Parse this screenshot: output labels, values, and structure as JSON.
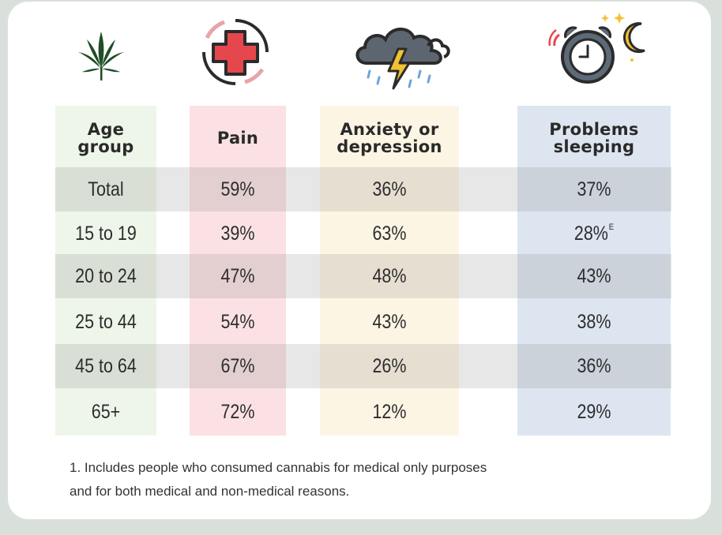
{
  "colors": {
    "pain": "#fbe1e3",
    "anxiety": "#fdf5e4",
    "sleep": "#dde6f0",
    "age": "#eef6e9"
  },
  "icons": [
    "cannabis-leaf-icon",
    "red-cross-icon",
    "storm-cloud-icon",
    "alarm-clock-moon-icon"
  ],
  "chart_data": {
    "type": "table",
    "columns": [
      "Age group",
      "Pain",
      "Anxiety or depression",
      "Problems sleeping"
    ],
    "headers": {
      "age": [
        "Age",
        "group"
      ],
      "pain": [
        "Pain"
      ],
      "anxiety": [
        "Anxiety or",
        "depression"
      ],
      "sleep": [
        "Problems",
        "sleeping"
      ]
    },
    "rows": [
      {
        "age": "Total",
        "pain": "59%",
        "anxiety": "36%",
        "sleep": "37%",
        "sleep_note": ""
      },
      {
        "age": "15 to 19",
        "pain": "39%",
        "anxiety": "63%",
        "sleep": "28%",
        "sleep_note": "E"
      },
      {
        "age": "20 to 24",
        "pain": "47%",
        "anxiety": "48%",
        "sleep": "43%",
        "sleep_note": ""
      },
      {
        "age": "25 to 44",
        "pain": "54%",
        "anxiety": "43%",
        "sleep": "38%",
        "sleep_note": ""
      },
      {
        "age": "45 to 64",
        "pain": "67%",
        "anxiety": "26%",
        "sleep": "36%",
        "sleep_note": ""
      },
      {
        "age": "65+",
        "pain": "72%",
        "anxiety": "12%",
        "sleep": "29%",
        "sleep_note": ""
      }
    ],
    "footnote": [
      "1. Includes people who consumed cannabis for medical only purposes",
      "and for both medical and non-medical reasons."
    ]
  }
}
